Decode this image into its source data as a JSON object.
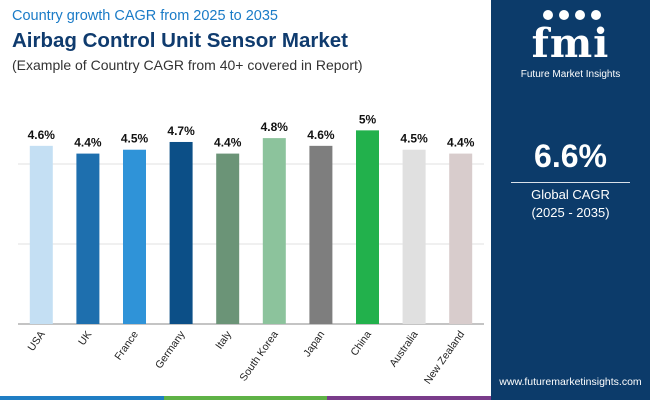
{
  "header": {
    "top_line": "Country growth CAGR from 2025 to 2035",
    "title": "Airbag Control Unit Sensor Market",
    "note": "(Example of Country CAGR from 40+ covered in Report)"
  },
  "side_panel": {
    "logo_text": "fmi",
    "logo_tagline": "Future Market Insights",
    "global_cagr_value": "6.6%",
    "global_cagr_label": "Global CAGR",
    "global_cagr_period": "(2025 - 2035)",
    "website": "www.futuremarketinsights.com",
    "background_color": "#0c3b6a"
  },
  "bottom_strip_colors": [
    "#1f7ec4",
    "#5fb246",
    "#7a3c8a"
  ],
  "chart_data": {
    "type": "bar",
    "categories": [
      "USA",
      "UK",
      "France",
      "Germany",
      "Italy",
      "South Korea",
      "Japan",
      "China",
      "Australia",
      "New Zealand"
    ],
    "values": [
      4.6,
      4.4,
      4.5,
      4.7,
      4.4,
      4.8,
      4.6,
      5.0,
      4.5,
      4.4
    ],
    "data_labels": [
      "4.6%",
      "4.4%",
      "4.5%",
      "4.7%",
      "4.4%",
      "4.8%",
      "4.6%",
      "5%",
      "4.5%",
      "4.4%"
    ],
    "colors": [
      "#c4dff3",
      "#1e6fae",
      "#2f93d8",
      "#0c4f87",
      "#6b9477",
      "#8cc39c",
      "#7e7e7e",
      "#22b14c",
      "#e0e0e0",
      "#d8cccc"
    ],
    "ylim": [
      0,
      5
    ],
    "grid": true
  }
}
